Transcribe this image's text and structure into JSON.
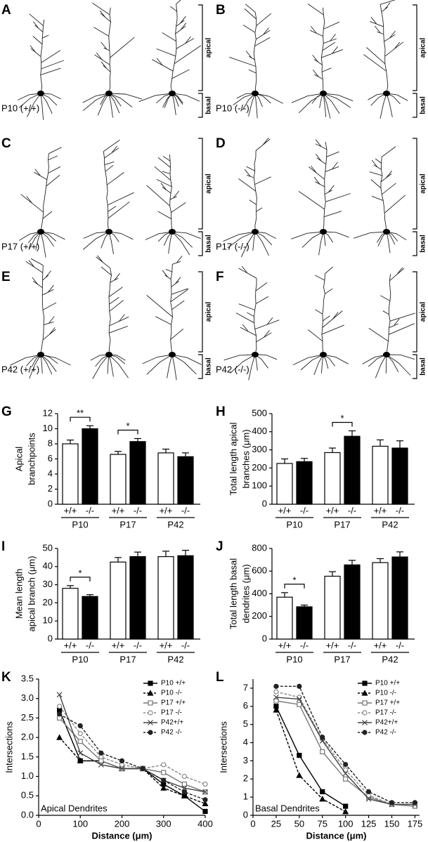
{
  "neuron_panels": [
    {
      "letter": "A",
      "label": "P10 (+/+)",
      "apical": "apical",
      "basal": "basal"
    },
    {
      "letter": "B",
      "label": "P10 (-/-)",
      "apical": "apical",
      "basal": "basal"
    },
    {
      "letter": "C",
      "label": "P17 (+/+)",
      "apical": "apical",
      "basal": "basal"
    },
    {
      "letter": "D",
      "label": "P17 (-/-)",
      "apical": "apical",
      "basal": "basal"
    },
    {
      "letter": "E",
      "label": "P42 (+/+)",
      "apical": "apical",
      "basal": "basal"
    },
    {
      "letter": "F",
      "label": "P42 (-/-)",
      "apical": "apical",
      "basal": "basal"
    }
  ],
  "chart_data": [
    {
      "type": "bar",
      "panel": "G",
      "ylabel": [
        "Apical",
        "branchpoints"
      ],
      "ylim": [
        0,
        12
      ],
      "yticks": [
        0,
        2,
        4,
        6,
        8,
        10,
        12
      ],
      "categories": [
        "+/+",
        "-/-",
        "+/+",
        "-/-",
        "+/+",
        "-/-"
      ],
      "groups": [
        "P10",
        "P17",
        "P42"
      ],
      "values": [
        8.0,
        10.0,
        6.6,
        8.3,
        6.8,
        6.3
      ],
      "errors": [
        0.5,
        0.4,
        0.4,
        0.4,
        0.5,
        0.5
      ],
      "colors": [
        "#ffffff",
        "#000000",
        "#ffffff",
        "#000000",
        "#ffffff",
        "#000000"
      ],
      "annotations": [
        {
          "text": "**",
          "between": [
            0,
            1
          ]
        },
        {
          "text": "*",
          "between": [
            2,
            3
          ]
        }
      ]
    },
    {
      "type": "bar",
      "panel": "H",
      "ylabel": [
        "Total length apical",
        "branches (μm)"
      ],
      "ylim": [
        0,
        500
      ],
      "yticks": [
        0,
        100,
        200,
        300,
        400,
        500
      ],
      "categories": [
        "+/+",
        "-/-",
        "+/+",
        "-/-",
        "+/+",
        "-/-"
      ],
      "groups": [
        "P10",
        "P17",
        "P42"
      ],
      "values": [
        225,
        235,
        285,
        375,
        320,
        310
      ],
      "errors": [
        25,
        18,
        25,
        30,
        35,
        40
      ],
      "colors": [
        "#ffffff",
        "#000000",
        "#ffffff",
        "#000000",
        "#ffffff",
        "#000000"
      ],
      "annotations": [
        {
          "text": "*",
          "between": [
            2,
            3
          ]
        }
      ]
    },
    {
      "type": "bar",
      "panel": "I",
      "ylabel": [
        "Mean length",
        "apical branch (μm)"
      ],
      "ylim": [
        0,
        50
      ],
      "yticks": [
        0,
        10,
        20,
        30,
        40,
        50
      ],
      "categories": [
        "+/+",
        "-/-",
        "+/+",
        "-/-",
        "+/+",
        "-/-"
      ],
      "groups": [
        "P10",
        "P17",
        "P42"
      ],
      "values": [
        28,
        23.5,
        42.5,
        45.5,
        45.5,
        46
      ],
      "errors": [
        1.5,
        1,
        2.5,
        2.5,
        3,
        3
      ],
      "colors": [
        "#ffffff",
        "#000000",
        "#ffffff",
        "#000000",
        "#ffffff",
        "#000000"
      ],
      "annotations": [
        {
          "text": "*",
          "between": [
            0,
            1
          ]
        }
      ]
    },
    {
      "type": "bar",
      "panel": "J",
      "ylabel": [
        "Total length basal",
        "dendrites (μm)"
      ],
      "ylim": [
        0,
        800
      ],
      "yticks": [
        0,
        200,
        400,
        600,
        800
      ],
      "categories": [
        "+/+",
        "-/-",
        "+/+",
        "-/-",
        "+/+",
        "-/-"
      ],
      "groups": [
        "P10",
        "P17",
        "P42"
      ],
      "values": [
        370,
        285,
        555,
        655,
        675,
        725
      ],
      "errors": [
        40,
        15,
        40,
        40,
        35,
        45
      ],
      "colors": [
        "#ffffff",
        "#000000",
        "#ffffff",
        "#000000",
        "#ffffff",
        "#000000"
      ],
      "annotations": [
        {
          "text": "*",
          "between": [
            0,
            1
          ]
        }
      ]
    },
    {
      "type": "line",
      "panel": "K",
      "ylabel": "Intersections",
      "xlabel": "Distance (μm)",
      "annotation": "Apical Dendrites",
      "x": [
        50,
        100,
        150,
        200,
        250,
        300,
        350,
        400
      ],
      "xlim": [
        0,
        400
      ],
      "xticks": [
        0,
        100,
        200,
        300,
        400
      ],
      "ylim": [
        0,
        3.5
      ],
      "yticks": [
        {
          "value": 0,
          "label": "0.0"
        },
        0.5,
        {
          "value": 1,
          "label": "1.0"
        },
        1.5,
        {
          "value": 2,
          "label": "2.0"
        },
        2.5,
        {
          "value": 3,
          "label": "3.0"
        },
        3.5
      ],
      "series": [
        {
          "name": "P10 +/+",
          "color": "#000000",
          "dashed": false,
          "marker": "square",
          "filled": true,
          "values": [
            2.7,
            1.4,
            1.4,
            1.2,
            1.2,
            0.8,
            0.5,
            0.1
          ]
        },
        {
          "name": "P10 -/-",
          "color": "#000000",
          "dashed": true,
          "marker": "triangle",
          "filled": true,
          "values": [
            2.0,
            1.4,
            1.4,
            1.2,
            1.2,
            0.7,
            0.5,
            0.3
          ]
        },
        {
          "name": "P17 +/+",
          "color": "#777777",
          "dashed": false,
          "marker": "square",
          "filled": false,
          "values": [
            2.5,
            1.9,
            1.4,
            1.2,
            1.2,
            1.1,
            0.8,
            0.6
          ]
        },
        {
          "name": "P17 -/-",
          "color": "#888888",
          "dashed": true,
          "marker": "circle",
          "filled": false,
          "values": [
            2.8,
            2.1,
            1.5,
            1.3,
            1.2,
            1.3,
            1.0,
            0.8
          ]
        },
        {
          "name": "P42+/+",
          "color": "#444444",
          "dashed": false,
          "marker": "cross",
          "filled": true,
          "values": [
            3.1,
            1.6,
            1.3,
            1.2,
            1.2,
            0.9,
            0.7,
            0.6
          ]
        },
        {
          "name": "P42 -/-",
          "color": "#222222",
          "dashed": true,
          "marker": "circle",
          "filled": true,
          "values": [
            2.6,
            2.3,
            1.6,
            1.4,
            1.2,
            0.9,
            0.6,
            0.4
          ]
        }
      ]
    },
    {
      "type": "line",
      "panel": "L",
      "ylabel": "Intersections",
      "xlabel": "Distance (μm)",
      "annotation": "Basal Dendrites",
      "x": [
        25,
        50,
        75,
        100,
        125,
        150,
        175
      ],
      "xlim": [
        0,
        180
      ],
      "xticks": [
        0,
        25,
        50,
        75,
        100,
        125,
        150,
        175
      ],
      "ylim": [
        0,
        7.5
      ],
      "yticks": [
        0,
        1,
        2,
        3,
        4,
        5,
        6,
        7
      ],
      "series": [
        {
          "name": "P10 +/+",
          "color": "#000000",
          "dashed": false,
          "marker": "square",
          "filled": true,
          "values": [
            6.0,
            3.3,
            1.3,
            0.5,
            null,
            null,
            null
          ]
        },
        {
          "name": "P10 -/-",
          "color": "#000000",
          "dashed": true,
          "marker": "triangle",
          "filled": true,
          "values": [
            5.8,
            2.2,
            0.9,
            0.2,
            null,
            null,
            null
          ]
        },
        {
          "name": "P17 +/+",
          "color": "#777777",
          "dashed": false,
          "marker": "square",
          "filled": false,
          "values": [
            6.3,
            6.1,
            3.5,
            2.0,
            1.0,
            0.6,
            0.5
          ]
        },
        {
          "name": "P17 -/-",
          "color": "#888888",
          "dashed": true,
          "marker": "circle",
          "filled": false,
          "values": [
            6.8,
            6.5,
            4.2,
            2.5,
            1.1,
            0.6,
            0.5
          ]
        },
        {
          "name": "P42+/+",
          "color": "#444444",
          "dashed": false,
          "marker": "cross",
          "filled": true,
          "values": [
            6.5,
            6.4,
            4.1,
            2.3,
            0.9,
            0.6,
            0.6
          ]
        },
        {
          "name": "P42 -/-",
          "color": "#222222",
          "dashed": true,
          "marker": "circle",
          "filled": true,
          "values": [
            7.1,
            7.1,
            4.3,
            2.8,
            1.3,
            0.7,
            0.7
          ]
        }
      ]
    }
  ]
}
